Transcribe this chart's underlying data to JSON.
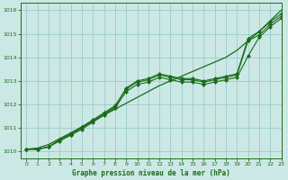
{
  "title": "Graphe pression niveau de la mer (hPa)",
  "bg_color": "#cce8e4",
  "grid_color": "#99cccc",
  "line_color": "#1a6b1a",
  "marker_color": "#1a6b1a",
  "xlim": [
    -0.5,
    23
  ],
  "ylim": [
    1009.7,
    1016.3
  ],
  "yticks": [
    1010,
    1011,
    1012,
    1013,
    1014,
    1015,
    1016
  ],
  "xticks": [
    0,
    1,
    2,
    3,
    4,
    5,
    6,
    7,
    8,
    9,
    10,
    11,
    12,
    13,
    14,
    15,
    16,
    17,
    18,
    19,
    20,
    21,
    22,
    23
  ],
  "series_straight": [
    1010.1,
    1010.15,
    1010.3,
    1010.55,
    1010.8,
    1011.05,
    1011.3,
    1011.55,
    1011.8,
    1012.05,
    1012.3,
    1012.55,
    1012.8,
    1013.0,
    1013.2,
    1013.4,
    1013.6,
    1013.8,
    1014.0,
    1014.3,
    1014.7,
    1015.1,
    1015.55,
    1016.0
  ],
  "series_wavy1": [
    1010.1,
    1010.1,
    1010.2,
    1010.5,
    1010.7,
    1011.0,
    1011.3,
    1011.6,
    1011.9,
    1012.7,
    1013.0,
    1013.1,
    1013.3,
    1013.2,
    1013.1,
    1013.1,
    1013.0,
    1013.1,
    1013.2,
    1013.3,
    1014.8,
    1015.1,
    1015.5,
    1015.85
  ],
  "series_wavy2": [
    1010.1,
    1010.1,
    1010.2,
    1010.5,
    1010.75,
    1011.05,
    1011.35,
    1011.65,
    1011.95,
    1012.65,
    1012.95,
    1013.05,
    1013.25,
    1013.15,
    1013.05,
    1013.05,
    1012.95,
    1013.05,
    1013.15,
    1013.25,
    1014.7,
    1014.95,
    1015.4,
    1015.75
  ],
  "series_wavy3": [
    1010.1,
    1010.1,
    1010.2,
    1010.45,
    1010.7,
    1010.95,
    1011.25,
    1011.55,
    1011.85,
    1012.55,
    1012.85,
    1012.95,
    1013.15,
    1013.05,
    1012.95,
    1012.95,
    1012.85,
    1012.95,
    1013.05,
    1013.15,
    1014.05,
    1014.85,
    1015.3,
    1015.65
  ]
}
